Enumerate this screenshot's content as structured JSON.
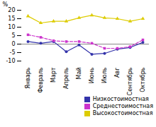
{
  "chart_data": {
    "type": "line",
    "categories": [
      "Январь",
      "Февраль",
      "Март",
      "Апрель",
      "Май",
      "Июнь",
      "Июль",
      "Авг",
      "Сентябрь",
      "Октябрь"
    ],
    "series": [
      {
        "name": "Низкостоимостная",
        "color": "#3333aa",
        "marker": "circle",
        "line_style": "solid",
        "values": [
          1.5,
          0.5,
          1.5,
          -4.5,
          -0.5,
          -6.0,
          -5.5,
          -3.0,
          -2.0,
          1.0
        ]
      },
      {
        "name": "Среднестоимостная",
        "color": "#cc33cc",
        "marker": "square",
        "line_style": "dashed",
        "values": [
          5.5,
          4.0,
          2.0,
          1.5,
          1.5,
          0.5,
          -2.5,
          -2.5,
          -1.5,
          2.5
        ]
      },
      {
        "name": "Высокостоимостная",
        "color": "#ddcc00",
        "marker": "triangle",
        "line_style": "solid",
        "values": [
          16.5,
          12.5,
          13.5,
          13.5,
          15.5,
          17.0,
          15.5,
          15.0,
          13.5,
          15.0
        ]
      }
    ],
    "ylabel": "%",
    "ylim": [
      -10,
      20
    ],
    "yticks": [
      -10,
      -5,
      0,
      5,
      10,
      15,
      20
    ],
    "reference_line": {
      "value": 0,
      "color": "#888888"
    },
    "grid": false,
    "legend": "lower right"
  }
}
